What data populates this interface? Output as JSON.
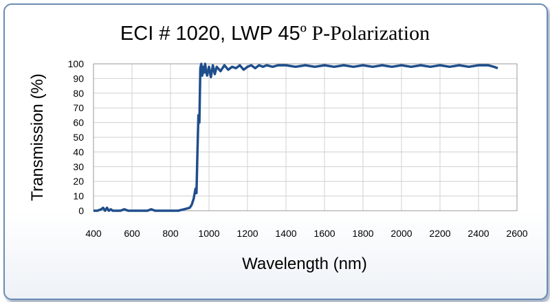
{
  "chart_data": {
    "type": "line",
    "title_part1": "ECI # 1020, LWP 45",
    "title_part2": "º P-Polarization",
    "xlabel": "Wavelength (nm)",
    "ylabel": "Transmission (%)",
    "xlim": [
      400,
      2600
    ],
    "ylim": [
      0,
      100
    ],
    "xticks": [
      400,
      600,
      800,
      1000,
      1200,
      1400,
      1600,
      1800,
      2000,
      2200,
      2400,
      2600
    ],
    "yticks": [
      0,
      10,
      20,
      30,
      40,
      50,
      60,
      70,
      80,
      90,
      100
    ],
    "grid": true,
    "line_color": "#1f4e8c",
    "series": [
      {
        "x": [
          400,
          420,
          440,
          450,
          460,
          470,
          480,
          490,
          500,
          520,
          540,
          560,
          580,
          600,
          640,
          680,
          700,
          720,
          740,
          760,
          800,
          840,
          870,
          900,
          910,
          920,
          930,
          935,
          940,
          945,
          950,
          955,
          960,
          965,
          970,
          975,
          980,
          985,
          990,
          1000,
          1010,
          1020,
          1030,
          1040,
          1060,
          1080,
          1100,
          1120,
          1140,
          1160,
          1180,
          1200,
          1220,
          1240,
          1260,
          1280,
          1300,
          1330,
          1360,
          1400,
          1450,
          1500,
          1550,
          1600,
          1650,
          1700,
          1750,
          1800,
          1850,
          1900,
          1950,
          2000,
          2050,
          2100,
          2150,
          2200,
          2250,
          2300,
          2350,
          2400,
          2450,
          2480,
          2500
        ],
        "y": [
          0,
          0,
          1,
          2,
          0,
          2,
          0,
          1,
          0,
          0,
          0,
          1,
          0,
          0,
          0,
          0,
          1,
          0,
          0,
          0,
          0,
          0,
          1,
          2,
          4,
          8,
          15,
          12,
          40,
          65,
          60,
          97,
          100,
          92,
          98,
          94,
          100,
          95,
          92,
          98,
          91,
          99,
          93,
          98,
          95,
          99,
          96,
          98,
          97,
          99,
          96,
          98,
          99,
          97,
          99,
          98,
          99,
          98,
          99,
          99,
          98,
          99,
          98,
          99,
          98,
          99,
          98,
          99,
          98,
          99,
          98,
          99,
          98,
          99,
          98,
          99,
          98,
          99,
          98,
          99,
          99,
          98,
          97
        ]
      }
    ]
  }
}
